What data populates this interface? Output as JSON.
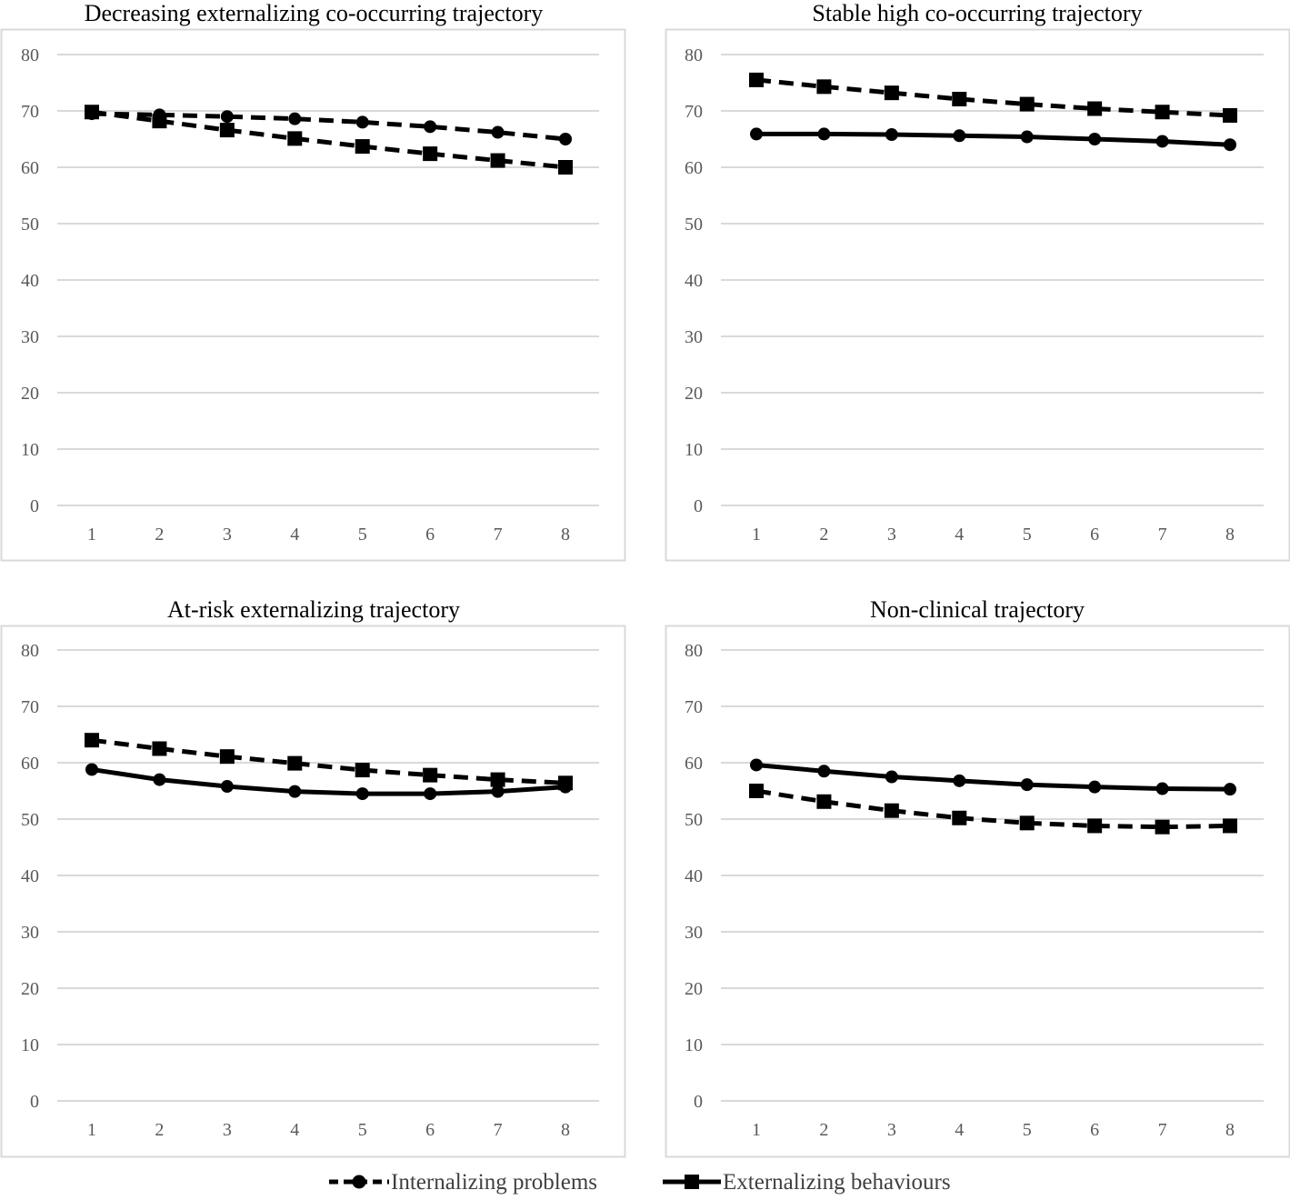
{
  "legend": {
    "internalizing_label": "Internalizing problems",
    "externalizing_label": "Externalizing behaviours"
  },
  "colors": {
    "line": "#000000",
    "grid": "#d9d9d9",
    "frame": "#d9d9d9",
    "tick": "#595959"
  },
  "chart_data": [
    {
      "type": "line",
      "title": "Decreasing externalizing co-occurring trajectory",
      "categories": [
        "1",
        "2",
        "3",
        "4",
        "5",
        "6",
        "7",
        "8"
      ],
      "ylim": [
        0,
        80
      ],
      "yticks": [
        "0",
        "10",
        "20",
        "30",
        "40",
        "50",
        "60",
        "70",
        "80"
      ],
      "series": [
        {
          "name": "Internalizing problems",
          "style": "dashed",
          "marker": "circle",
          "values": [
            69.5,
            69.3,
            69.0,
            68.6,
            68.0,
            67.2,
            66.2,
            65.0
          ]
        },
        {
          "name": "Externalizing behaviours",
          "style": "dashed",
          "marker": "square",
          "values": [
            69.8,
            68.2,
            66.6,
            65.1,
            63.7,
            62.4,
            61.2,
            60.0
          ]
        }
      ]
    },
    {
      "type": "line",
      "title": "Stable high co-occurring trajectory",
      "categories": [
        "1",
        "2",
        "3",
        "4",
        "5",
        "6",
        "7",
        "8"
      ],
      "ylim": [
        0,
        80
      ],
      "yticks": [
        "0",
        "10",
        "20",
        "30",
        "40",
        "50",
        "60",
        "70",
        "80"
      ],
      "series": [
        {
          "name": "Internalizing problems",
          "style": "solid",
          "marker": "circle",
          "values": [
            65.9,
            65.9,
            65.8,
            65.6,
            65.4,
            65.0,
            64.6,
            64.0
          ]
        },
        {
          "name": "Externalizing behaviours",
          "style": "dashed",
          "marker": "square",
          "values": [
            75.5,
            74.3,
            73.2,
            72.1,
            71.2,
            70.4,
            69.8,
            69.2
          ]
        }
      ]
    },
    {
      "type": "line",
      "title": "At-risk externalizing trajectory",
      "categories": [
        "1",
        "2",
        "3",
        "4",
        "5",
        "6",
        "7",
        "8"
      ],
      "ylim": [
        0,
        80
      ],
      "yticks": [
        "0",
        "10",
        "20",
        "30",
        "40",
        "50",
        "60",
        "70",
        "80"
      ],
      "series": [
        {
          "name": "Internalizing problems",
          "style": "solid",
          "marker": "circle",
          "values": [
            58.8,
            57.0,
            55.8,
            54.9,
            54.5,
            54.5,
            54.9,
            55.7
          ]
        },
        {
          "name": "Externalizing behaviours",
          "style": "dashed",
          "marker": "square",
          "values": [
            64.0,
            62.5,
            61.1,
            59.9,
            58.7,
            57.8,
            57.0,
            56.4
          ]
        }
      ]
    },
    {
      "type": "line",
      "title": "Non-clinical trajectory",
      "categories": [
        "1",
        "2",
        "3",
        "4",
        "5",
        "6",
        "7",
        "8"
      ],
      "ylim": [
        0,
        80
      ],
      "yticks": [
        "0",
        "10",
        "20",
        "30",
        "40",
        "50",
        "60",
        "70",
        "80"
      ],
      "series": [
        {
          "name": "Internalizing problems",
          "style": "solid",
          "marker": "circle",
          "values": [
            59.6,
            58.5,
            57.5,
            56.8,
            56.1,
            55.7,
            55.4,
            55.3
          ]
        },
        {
          "name": "Externalizing behaviours",
          "style": "dashed",
          "marker": "square",
          "values": [
            55.0,
            53.1,
            51.5,
            50.2,
            49.3,
            48.8,
            48.6,
            48.8
          ]
        }
      ]
    }
  ]
}
